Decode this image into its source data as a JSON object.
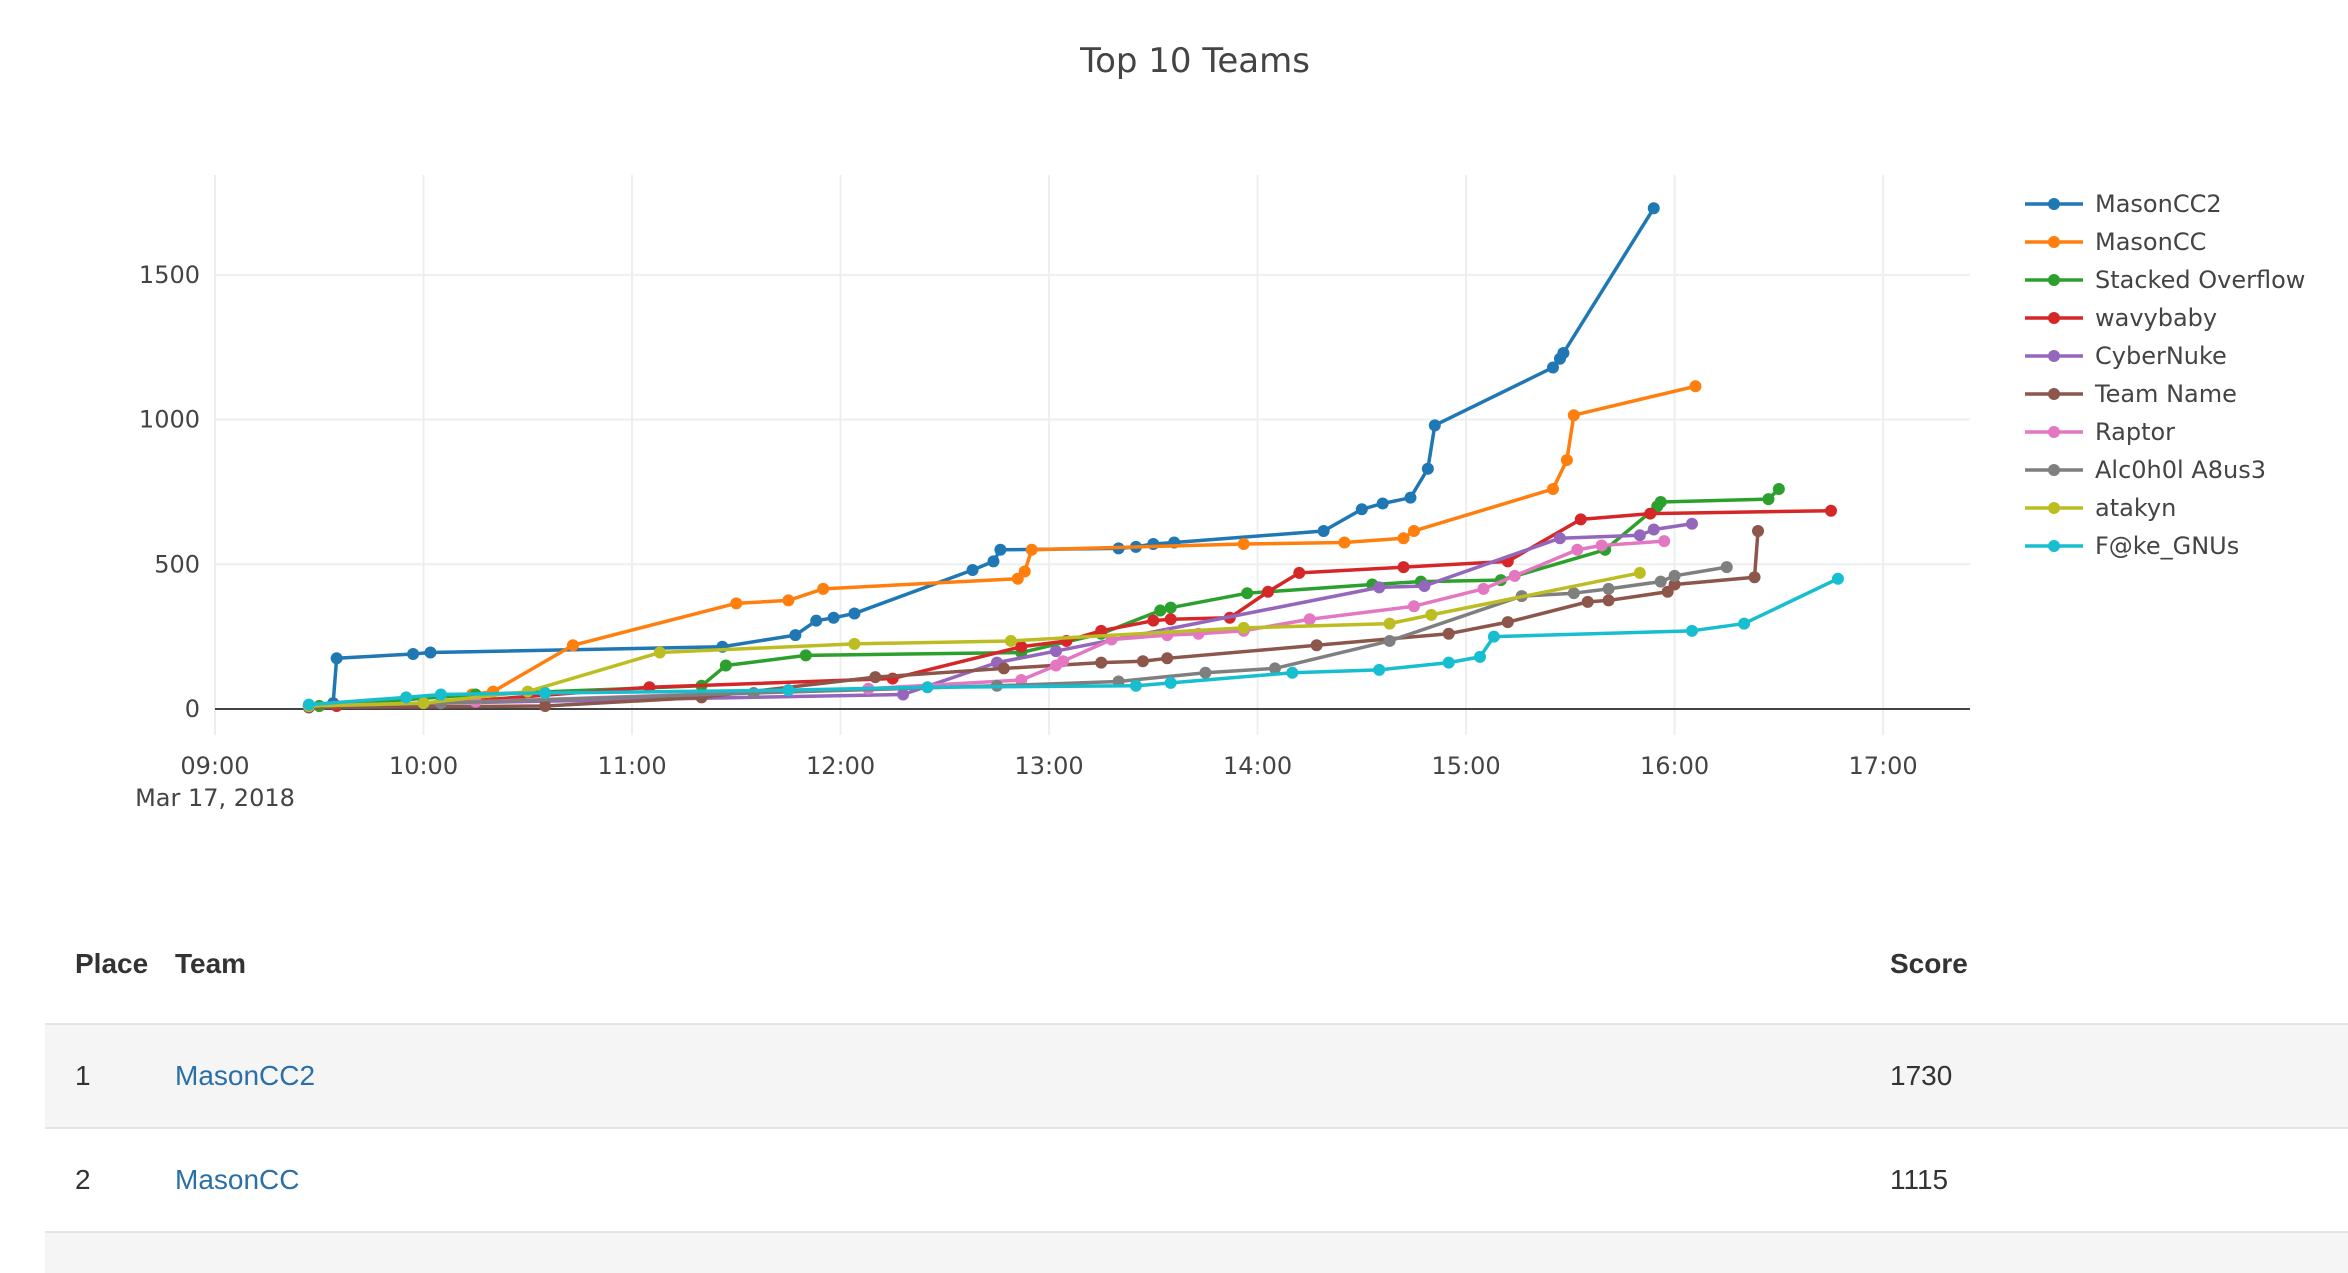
{
  "chart_data": {
    "type": "line",
    "title": "Top 10 Teams",
    "xlabel": "",
    "ylabel": "",
    "x_range": [
      "2018-03-17 09:00",
      "2018-03-17 17:25"
    ],
    "ylim": [
      -90,
      1845
    ],
    "x_ticks": [
      {
        "t": "09:00",
        "label": "09:00",
        "sublabel": "Mar 17, 2018"
      },
      {
        "t": "10:00",
        "label": "10:00"
      },
      {
        "t": "11:00",
        "label": "11:00"
      },
      {
        "t": "12:00",
        "label": "12:00"
      },
      {
        "t": "13:00",
        "label": "13:00"
      },
      {
        "t": "14:00",
        "label": "14:00"
      },
      {
        "t": "15:00",
        "label": "15:00"
      },
      {
        "t": "16:00",
        "label": "16:00"
      },
      {
        "t": "17:00",
        "label": "17:00"
      }
    ],
    "y_ticks": [
      0,
      500,
      1000,
      1500
    ],
    "grid": true,
    "legend": "right",
    "series": [
      {
        "name": "MasonCC2",
        "color": "#1f77b4",
        "points": [
          [
            "09:27",
            10
          ],
          [
            "09:34",
            20
          ],
          [
            "09:35",
            175
          ],
          [
            "09:57",
            190
          ],
          [
            "10:02",
            195
          ],
          [
            "11:26",
            215
          ],
          [
            "11:47",
            255
          ],
          [
            "11:53",
            305
          ],
          [
            "11:58",
            315
          ],
          [
            "12:04",
            330
          ],
          [
            "12:38",
            480
          ],
          [
            "12:44",
            510
          ],
          [
            "12:46",
            550
          ],
          [
            "13:20",
            555
          ],
          [
            "13:25",
            560
          ],
          [
            "13:30",
            570
          ],
          [
            "13:36",
            575
          ],
          [
            "14:19",
            615
          ],
          [
            "14:30",
            690
          ],
          [
            "14:36",
            710
          ],
          [
            "14:44",
            730
          ],
          [
            "14:49",
            830
          ],
          [
            "14:51",
            980
          ],
          [
            "15:25",
            1180
          ],
          [
            "15:27",
            1210
          ],
          [
            "15:28",
            1230
          ],
          [
            "15:54",
            1730
          ]
        ]
      },
      {
        "name": "MasonCC",
        "color": "#ff7f0e",
        "points": [
          [
            "09:30",
            10
          ],
          [
            "10:14",
            50
          ],
          [
            "10:20",
            60
          ],
          [
            "10:43",
            220
          ],
          [
            "11:30",
            365
          ],
          [
            "11:45",
            375
          ],
          [
            "11:55",
            415
          ],
          [
            "12:51",
            450
          ],
          [
            "12:53",
            475
          ],
          [
            "12:55",
            550
          ],
          [
            "13:56",
            570
          ],
          [
            "14:25",
            575
          ],
          [
            "14:42",
            590
          ],
          [
            "14:45",
            615
          ],
          [
            "15:25",
            760
          ],
          [
            "15:29",
            860
          ],
          [
            "15:31",
            1015
          ],
          [
            "16:06",
            1115
          ]
        ]
      },
      {
        "name": "Stacked Overflow",
        "color": "#2ca02c",
        "points": [
          [
            "09:30",
            10
          ],
          [
            "10:15",
            50
          ],
          [
            "11:20",
            80
          ],
          [
            "11:27",
            150
          ],
          [
            "11:50",
            185
          ],
          [
            "12:52",
            195
          ],
          [
            "13:15",
            260
          ],
          [
            "13:32",
            340
          ],
          [
            "13:35",
            350
          ],
          [
            "13:57",
            400
          ],
          [
            "14:33",
            430
          ],
          [
            "14:47",
            440
          ],
          [
            "15:10",
            445
          ],
          [
            "15:40",
            550
          ],
          [
            "15:55",
            700
          ],
          [
            "15:56",
            715
          ],
          [
            "16:27",
            725
          ],
          [
            "16:30",
            760
          ]
        ]
      },
      {
        "name": "wavybaby",
        "color": "#d62728",
        "points": [
          [
            "09:35",
            10
          ],
          [
            "10:05",
            20
          ],
          [
            "11:05",
            75
          ],
          [
            "12:15",
            105
          ],
          [
            "12:52",
            215
          ],
          [
            "13:05",
            235
          ],
          [
            "13:15",
            270
          ],
          [
            "13:30",
            305
          ],
          [
            "13:35",
            310
          ],
          [
            "13:52",
            315
          ],
          [
            "14:03",
            405
          ],
          [
            "14:12",
            470
          ],
          [
            "14:42",
            490
          ],
          [
            "15:12",
            510
          ],
          [
            "15:33",
            655
          ],
          [
            "15:53",
            675
          ],
          [
            "16:45",
            685
          ]
        ]
      },
      {
        "name": "CyberNuke",
        "color": "#9467bd",
        "points": [
          [
            "09:27",
            10
          ],
          [
            "10:05",
            20
          ],
          [
            "12:18",
            50
          ],
          [
            "12:45",
            160
          ],
          [
            "13:02",
            200
          ],
          [
            "14:35",
            420
          ],
          [
            "14:48",
            425
          ],
          [
            "15:27",
            590
          ],
          [
            "15:50",
            600
          ],
          [
            "15:54",
            620
          ],
          [
            "16:05",
            640
          ]
        ]
      },
      {
        "name": "Team Name",
        "color": "#8c564b",
        "points": [
          [
            "09:27",
            5
          ],
          [
            "10:35",
            10
          ],
          [
            "11:20",
            40
          ],
          [
            "12:10",
            110
          ],
          [
            "12:47",
            140
          ],
          [
            "13:15",
            160
          ],
          [
            "13:27",
            165
          ],
          [
            "13:34",
            175
          ],
          [
            "14:17",
            220
          ],
          [
            "14:55",
            260
          ],
          [
            "15:12",
            300
          ],
          [
            "15:35",
            370
          ],
          [
            "15:41",
            375
          ],
          [
            "15:58",
            405
          ],
          [
            "16:00",
            430
          ],
          [
            "16:23",
            455
          ],
          [
            "16:24",
            615
          ]
        ]
      },
      {
        "name": "Raptor",
        "color": "#e377c2",
        "points": [
          [
            "09:27",
            10
          ],
          [
            "10:15",
            25
          ],
          [
            "12:08",
            70
          ],
          [
            "12:52",
            100
          ],
          [
            "13:02",
            150
          ],
          [
            "13:04",
            165
          ],
          [
            "13:18",
            240
          ],
          [
            "13:34",
            255
          ],
          [
            "13:43",
            260
          ],
          [
            "13:56",
            270
          ],
          [
            "14:15",
            310
          ],
          [
            "14:45",
            355
          ],
          [
            "15:05",
            415
          ],
          [
            "15:14",
            460
          ],
          [
            "15:32",
            550
          ],
          [
            "15:39",
            565
          ],
          [
            "15:57",
            580
          ]
        ]
      },
      {
        "name": "Alc0h0l A8us3",
        "color": "#7f7f7f",
        "points": [
          [
            "09:27",
            10
          ],
          [
            "10:05",
            20
          ],
          [
            "11:35",
            55
          ],
          [
            "12:45",
            80
          ],
          [
            "13:20",
            95
          ],
          [
            "13:45",
            125
          ],
          [
            "14:05",
            140
          ],
          [
            "14:38",
            235
          ],
          [
            "15:16",
            390
          ],
          [
            "15:31",
            400
          ],
          [
            "15:41",
            415
          ],
          [
            "15:56",
            440
          ],
          [
            "16:00",
            460
          ],
          [
            "16:15",
            490
          ]
        ]
      },
      {
        "name": "atakyn",
        "color": "#bcbd22",
        "points": [
          [
            "09:27",
            10
          ],
          [
            "10:00",
            20
          ],
          [
            "10:30",
            60
          ],
          [
            "11:08",
            195
          ],
          [
            "12:04",
            225
          ],
          [
            "12:49",
            235
          ],
          [
            "13:56",
            280
          ],
          [
            "14:38",
            295
          ],
          [
            "14:50",
            325
          ],
          [
            "15:50",
            470
          ]
        ]
      },
      {
        "name": "F@ke_GNUs",
        "color": "#17becf",
        "points": [
          [
            "09:27",
            15
          ],
          [
            "09:55",
            40
          ],
          [
            "10:05",
            50
          ],
          [
            "10:35",
            55
          ],
          [
            "11:45",
            65
          ],
          [
            "12:25",
            75
          ],
          [
            "13:25",
            80
          ],
          [
            "13:35",
            90
          ],
          [
            "14:10",
            125
          ],
          [
            "14:35",
            135
          ],
          [
            "14:55",
            160
          ],
          [
            "15:04",
            180
          ],
          [
            "15:08",
            250
          ],
          [
            "16:05",
            270
          ],
          [
            "16:20",
            295
          ],
          [
            "16:47",
            450
          ]
        ]
      }
    ]
  },
  "scoreboard": {
    "headers": {
      "place": "Place",
      "team": "Team",
      "score": "Score"
    },
    "rows": [
      {
        "place": "1",
        "team": "MasonCC2",
        "score": "1730"
      },
      {
        "place": "2",
        "team": "MasonCC",
        "score": "1115"
      }
    ]
  }
}
